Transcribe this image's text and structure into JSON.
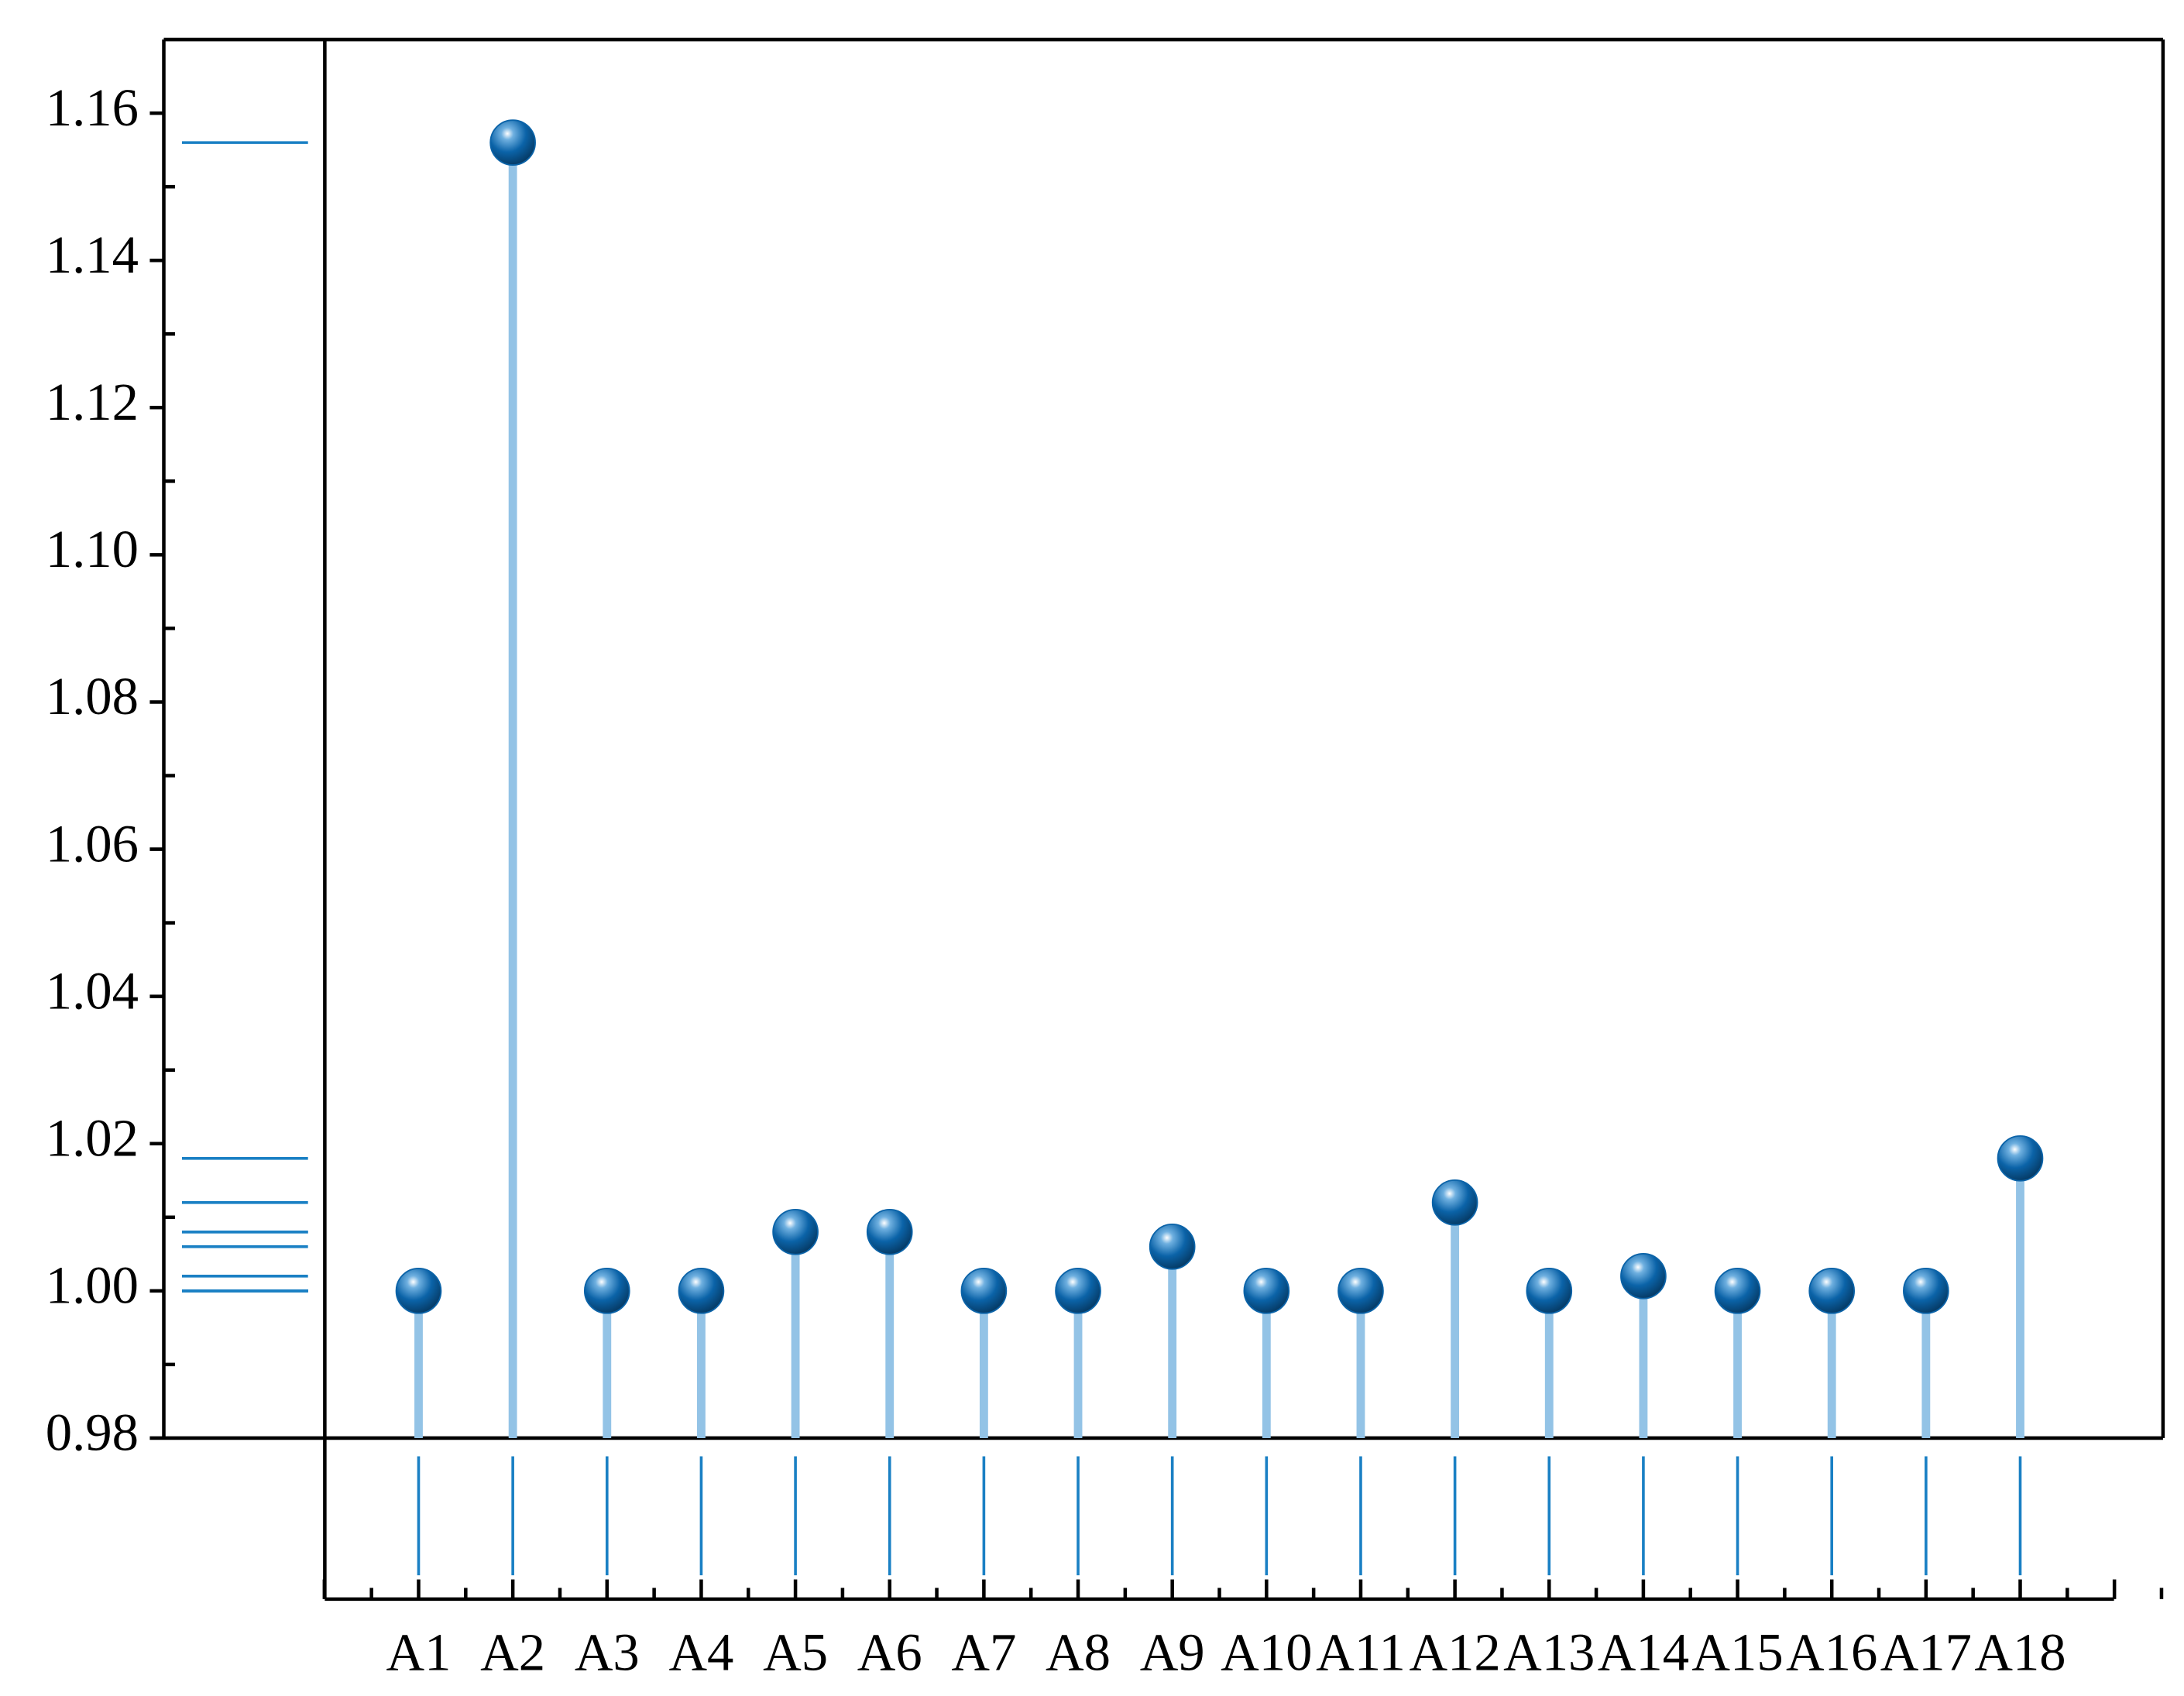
{
  "chart_data": {
    "type": "stem",
    "categories": [
      "A1",
      "A2",
      "A3",
      "A4",
      "A5",
      "A6",
      "A7",
      "A8",
      "A9",
      "A10",
      "A11",
      "A12",
      "A13",
      "A14",
      "A15",
      "A16",
      "A17",
      "A18"
    ],
    "values": [
      1.0,
      1.156,
      1.0,
      1.0,
      1.008,
      1.008,
      1.0,
      1.0,
      1.006,
      1.0,
      1.0,
      1.012,
      1.0,
      1.002,
      1.0,
      1.0,
      1.0,
      1.018
    ],
    "color": "#0b63a8",
    "stem_color": "#93c3e6",
    "rug_color": "#1a80c4",
    "ylim": [
      0.98,
      1.17
    ],
    "yticks": [
      0.98,
      {
        "value": 1.0,
        "label": "1.00"
      },
      1.02,
      1.04,
      1.06,
      1.08,
      {
        "value": 1.1,
        "label": "1.10"
      },
      1.12,
      1.14,
      1.16
    ],
    "rug": true
  }
}
